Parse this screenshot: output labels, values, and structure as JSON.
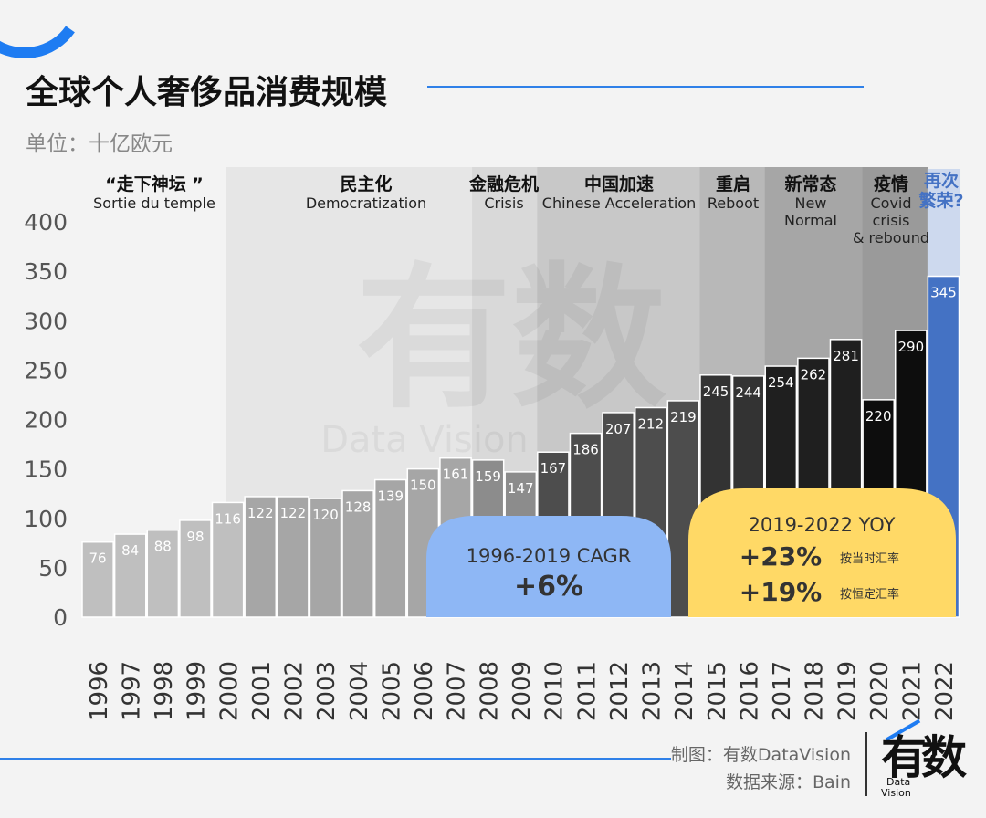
{
  "header": {
    "title": "全球个人奢侈品消费规模",
    "unit": "单位：十亿欧元"
  },
  "footer": {
    "credit": "制图：有数DataVision",
    "source": "数据来源：Bain",
    "logo_glyph": "有数",
    "logo_sub_1": "Data",
    "logo_sub_2": "Vision"
  },
  "watermark": {
    "glyph": "有数",
    "sub": "Data Vision"
  },
  "colors": {
    "accent": "#2f80e8",
    "highlight_bar": "#4472c4",
    "cagr_box": "#8eb7f5",
    "yoy_box": "#ffd966"
  },
  "chart_data": {
    "type": "bar",
    "categories": [
      "1996",
      "1997",
      "1998",
      "1999",
      "2000",
      "2001",
      "2002",
      "2003",
      "2004",
      "2005",
      "2006",
      "2007",
      "2008",
      "2009",
      "2010",
      "2011",
      "2012",
      "2013",
      "2014",
      "2015",
      "2016",
      "2017",
      "2018",
      "2019",
      "2020",
      "2021",
      "2022"
    ],
    "values": [
      76,
      84,
      88,
      98,
      116,
      122,
      122,
      120,
      128,
      139,
      150,
      161,
      159,
      147,
      167,
      186,
      207,
      212,
      219,
      245,
      244,
      254,
      262,
      281,
      220,
      290,
      345
    ],
    "ylim": [
      0,
      400
    ],
    "yticks": [
      0,
      50,
      100,
      150,
      200,
      250,
      300,
      350,
      400
    ],
    "highlight_category": "2022",
    "phases": [
      {
        "title": "“走下神坛 ”",
        "subtitle": "Sortie du temple",
        "from": "1996",
        "to": "2000"
      },
      {
        "title": "民主化",
        "subtitle": "Democratization",
        "from": "2001",
        "to": "2007"
      },
      {
        "title": "金融危机",
        "subtitle": "Crisis",
        "from": "2008",
        "to": "2009"
      },
      {
        "title": "中国加速",
        "subtitle": "Chinese Acceleration",
        "from": "2010",
        "to": "2014"
      },
      {
        "title": "重启",
        "subtitle": "Reboot",
        "from": "2015",
        "to": "2016"
      },
      {
        "title": "新常态",
        "subtitle": "New Normal",
        "from": "2017",
        "to": "2019"
      },
      {
        "title": "疫情",
        "subtitle": "Covid crisis & rebound",
        "from": "2020",
        "to": "2021"
      },
      {
        "title": "再次繁荣?",
        "subtitle": "",
        "from": "2022",
        "to": "2022"
      }
    ],
    "annotations": [
      {
        "label": "1996-2019 CAGR",
        "value": "+6%"
      },
      {
        "label": "2019-2022 YOY",
        "items": [
          {
            "value": "+23%",
            "note": "按当时汇率"
          },
          {
            "value": "+19%",
            "note": "按恒定汇率"
          }
        ]
      }
    ]
  }
}
